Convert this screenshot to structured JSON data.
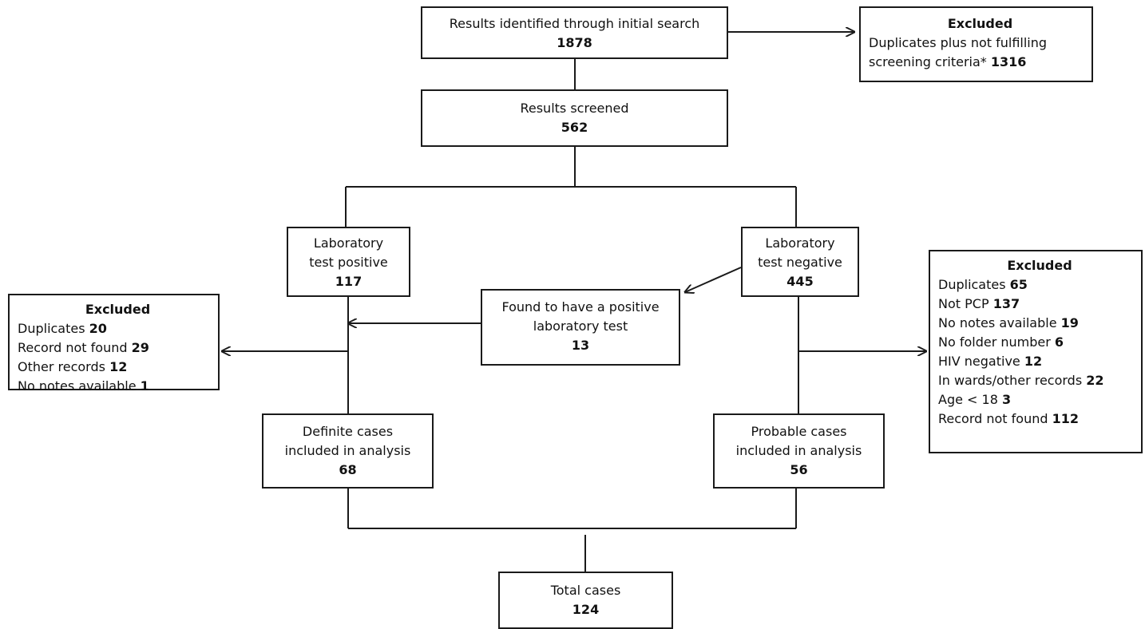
{
  "boxes": {
    "initial_search": {
      "label": "Results identified through initial search",
      "count": "1878"
    },
    "excluded_top": {
      "title": "Excluded",
      "line1": "Duplicates plus not fulfilling",
      "line2": "screening criteria*",
      "count": "1316"
    },
    "screened": {
      "label": "Results screened",
      "count": "562"
    },
    "lab_positive": {
      "line1": "Laboratory",
      "line2": "test positive",
      "count": "117"
    },
    "lab_negative": {
      "line1": "Laboratory",
      "line2": "test negative",
      "count": "445"
    },
    "found_positive": {
      "line1": "Found to have a positive",
      "line2": "laboratory test",
      "count": "13"
    },
    "excluded_left": {
      "title": "Excluded",
      "items": [
        {
          "label": "Duplicates",
          "count": "20"
        },
        {
          "label": "Record not found",
          "count": "29"
        },
        {
          "label": "Other records",
          "count": "12"
        },
        {
          "label": "No notes available",
          "count": "1"
        }
      ]
    },
    "excluded_right": {
      "title": "Excluded",
      "items": [
        {
          "label": "Duplicates",
          "count": "65"
        },
        {
          "label": "Not PCP",
          "count": "137"
        },
        {
          "label": "No notes available",
          "count": "19"
        },
        {
          "label": "No folder number",
          "count": "6"
        },
        {
          "label": "HIV negative",
          "count": "12"
        },
        {
          "label": "In wards/other records",
          "count": "22"
        },
        {
          "label": "Age < 18",
          "count": "3"
        },
        {
          "label": "Record not found",
          "count": "112"
        }
      ]
    },
    "definite": {
      "line1": "Definite cases",
      "line2": "included in analysis",
      "count": "68"
    },
    "probable": {
      "line1": "Probable cases",
      "line2": "included in analysis",
      "count": "56"
    },
    "total": {
      "label": "Total cases",
      "count": "124"
    }
  }
}
